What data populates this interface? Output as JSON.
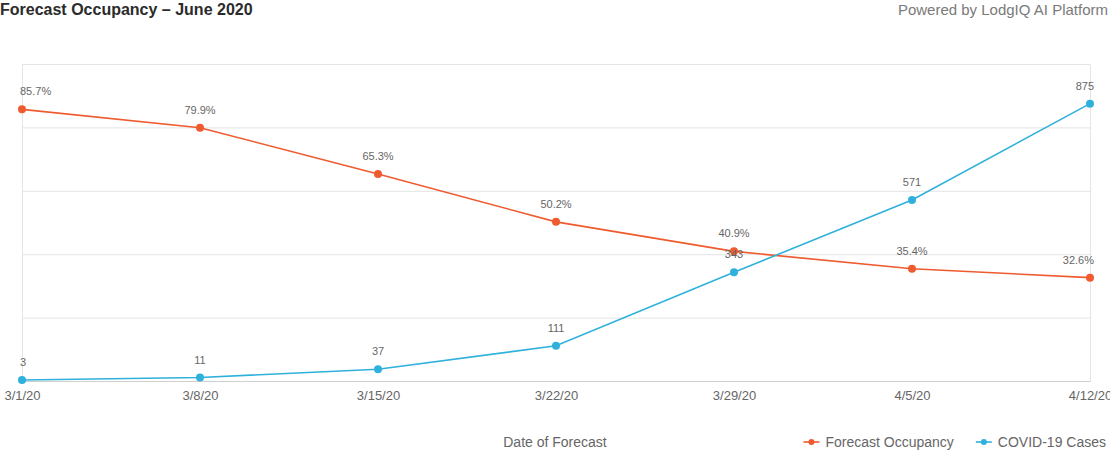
{
  "chart_data": {
    "type": "line",
    "title": "Forecast Occupancy – June 2020",
    "subtitle": "Powered by LodgIQ AI Platform",
    "x_label": "Date of Forecast",
    "categories": [
      "3/1/20",
      "3/8/20",
      "3/15/20",
      "3/22/20",
      "3/29/20",
      "4/5/20",
      "4/12/20"
    ],
    "series": [
      {
        "name": "Forecast Occupancy",
        "color": "#ef5a2f",
        "marker": "circle",
        "values": [
          85.7,
          79.9,
          65.3,
          50.2,
          40.9,
          35.4,
          32.6
        ],
        "value_labels": [
          "85.7%",
          "79.9%",
          "65.3%",
          "50.2%",
          "40.9%",
          "35.4%",
          "32.6%"
        ]
      },
      {
        "name": "COVID-19 Cases",
        "color": "#2fb1dc",
        "marker": "circle",
        "axis": "y2",
        "values": [
          3,
          11,
          37,
          111,
          343,
          571,
          875
        ]
      }
    ],
    "ylim": [
      0,
      100
    ],
    "yticks": [
      0,
      20,
      40,
      60,
      80,
      100
    ],
    "y2lim": [
      0,
      1000
    ],
    "y2ticks": [
      0,
      200,
      400,
      600,
      800,
      1000
    ],
    "grid": true,
    "data_labels": true,
    "tick_labels": "x",
    "legend": "bottom-right"
  }
}
